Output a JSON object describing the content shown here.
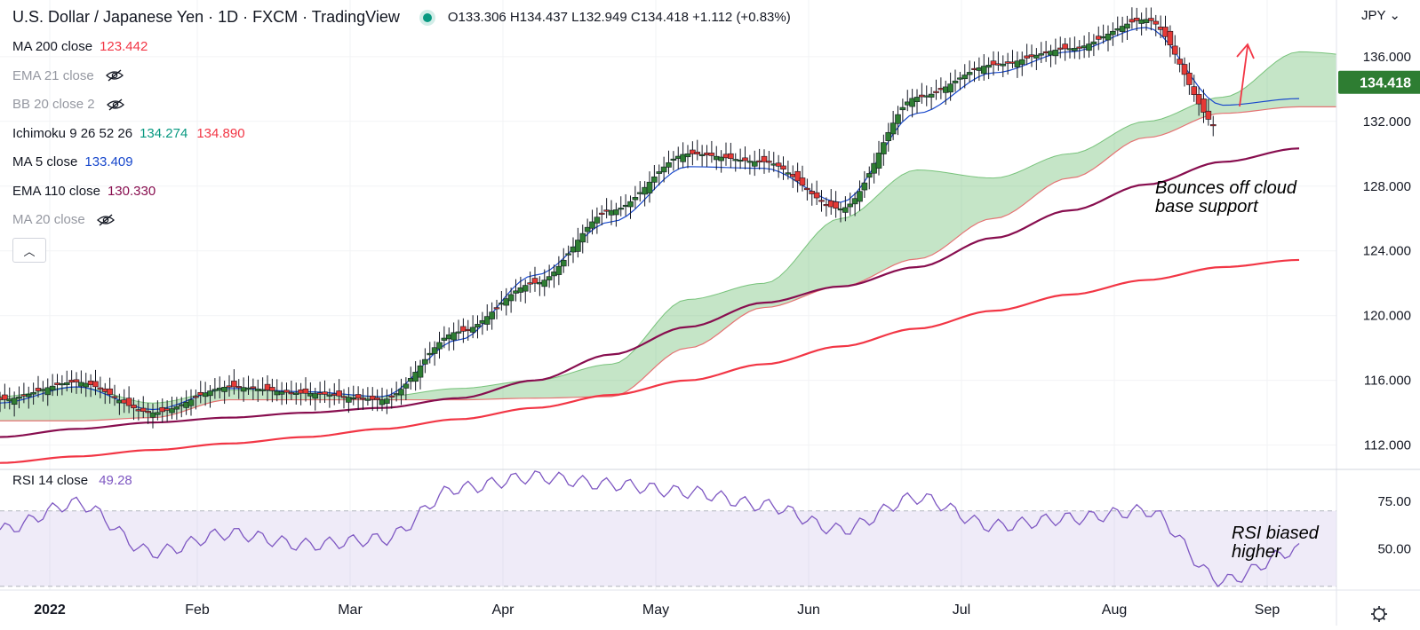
{
  "header": {
    "title": "U.S. Dollar / Japanese Yen · 1D · FXCM · TradingView",
    "ohlc": "O133.306 H134.437 L132.949 C134.418 +1.112 (+0.83%)",
    "currency": "JPY"
  },
  "indicators": [
    {
      "name": "MA 200 close",
      "value": "123.442",
      "color": "#f23645",
      "hidden": false
    },
    {
      "name": "EMA 21 close",
      "value": "",
      "color": "#9598a1",
      "hidden": true
    },
    {
      "name": "BB 20 close 2",
      "value": "",
      "color": "#9598a1",
      "hidden": true
    },
    {
      "name": "Ichimoku 9 26 52 26",
      "value": "134.274",
      "value2": "134.890",
      "color": "#089981",
      "color2": "#f23645",
      "hidden": false
    },
    {
      "name": "MA 5 close",
      "value": "133.409",
      "color": "#1848cc",
      "hidden": false
    },
    {
      "name": "EMA 110 close",
      "value": "130.330",
      "color": "#880e4f",
      "hidden": false
    },
    {
      "name": "MA 20 close",
      "value": "",
      "color": "#9598a1",
      "hidden": true
    }
  ],
  "rsi": {
    "name": "RSI 14 close",
    "value": "49.28",
    "color": "#7e57c2"
  },
  "annotations": {
    "cloud": [
      "Bounces off cloud",
      "base support"
    ],
    "rsi": [
      "RSI biased",
      "higher"
    ]
  },
  "last_price_label": "134.418",
  "chart_data": [
    {
      "type": "line",
      "title": "U.S. Dollar / Japanese Yen · 1D · FXCM · TradingView",
      "ylim": [
        110.5,
        139.5
      ],
      "yticks": [
        "112.000",
        "116.000",
        "120.000",
        "124.000",
        "128.000",
        "132.000",
        "136.000"
      ],
      "xticks": [
        "2022",
        "Feb",
        "Mar",
        "Apr",
        "May",
        "Jun",
        "Jul",
        "Aug",
        "Sep"
      ],
      "x": [
        0,
        0.5,
        1,
        1.5,
        2,
        2.5,
        3,
        3.5,
        4,
        4.5,
        5,
        5.5,
        6,
        6.5,
        7,
        7.5,
        8,
        8.5
      ],
      "series": [
        {
          "name": "MA 200 close",
          "color": "#f23645",
          "values": [
            110.9,
            111.3,
            111.7,
            112.1,
            112.5,
            113.0,
            113.6,
            114.3,
            115.1,
            116.0,
            117.0,
            118.1,
            119.2,
            120.3,
            121.3,
            122.2,
            123.0,
            123.44
          ]
        },
        {
          "name": "EMA 110 close",
          "color": "#880e4f",
          "values": [
            112.5,
            113.0,
            113.4,
            113.7,
            114.0,
            114.3,
            114.9,
            116.0,
            117.6,
            119.3,
            120.8,
            121.8,
            123.0,
            124.8,
            126.5,
            128.1,
            129.5,
            130.33
          ]
        },
        {
          "name": "MA 5 close",
          "color": "#1848cc",
          "values": [
            114.6,
            115.6,
            114.2,
            115.5,
            115.3,
            115.0,
            118.5,
            122.5,
            125.8,
            129.2,
            129.1,
            127.0,
            132.5,
            135.0,
            136.3,
            137.8,
            133.0,
            133.41
          ]
        },
        {
          "name": "Close",
          "color": "#089981",
          "values": [
            114.8,
            115.9,
            114.0,
            115.6,
            115.2,
            114.8,
            119.0,
            122.0,
            126.5,
            130.0,
            129.5,
            126.6,
            133.5,
            135.5,
            136.5,
            138.3,
            131.5,
            134.418
          ]
        }
      ],
      "cloud": {
        "x": [
          0,
          0.5,
          1,
          1.5,
          2,
          2.5,
          3,
          3.5,
          4,
          4.5,
          5,
          5.5,
          6,
          6.5,
          7,
          7.5,
          8,
          8.5,
          9
        ],
        "span_a": [
          115.0,
          115.6,
          114.6,
          115.4,
          115.3,
          115.0,
          115.5,
          116.0,
          117.0,
          121.0,
          122.0,
          126.0,
          129.0,
          128.5,
          130.0,
          132.0,
          133.5,
          136.3,
          136.0
        ],
        "span_b": [
          113.5,
          113.5,
          113.7,
          114.8,
          114.8,
          114.8,
          114.8,
          114.9,
          115.0,
          118.0,
          120.5,
          121.8,
          123.5,
          126.0,
          128.5,
          131.0,
          132.5,
          132.9,
          132.9
        ]
      }
    },
    {
      "type": "line",
      "title": "RSI 14 close",
      "ylim": [
        28,
        92
      ],
      "yticks": [
        "50.00",
        "75.00"
      ],
      "bands": [
        30,
        70
      ],
      "x": [
        0,
        0.5,
        1,
        1.5,
        2,
        2.5,
        3,
        3.5,
        4,
        4.5,
        5,
        5.5,
        6,
        6.5,
        7,
        7.5,
        8,
        8.5
      ],
      "series": [
        {
          "name": "RSI 14 close",
          "color": "#7e57c2",
          "values": [
            60,
            74,
            48,
            58,
            52,
            55,
            82,
            88,
            84,
            80,
            73,
            60,
            77,
            62,
            66,
            70,
            33,
            49.28
          ]
        }
      ]
    }
  ]
}
